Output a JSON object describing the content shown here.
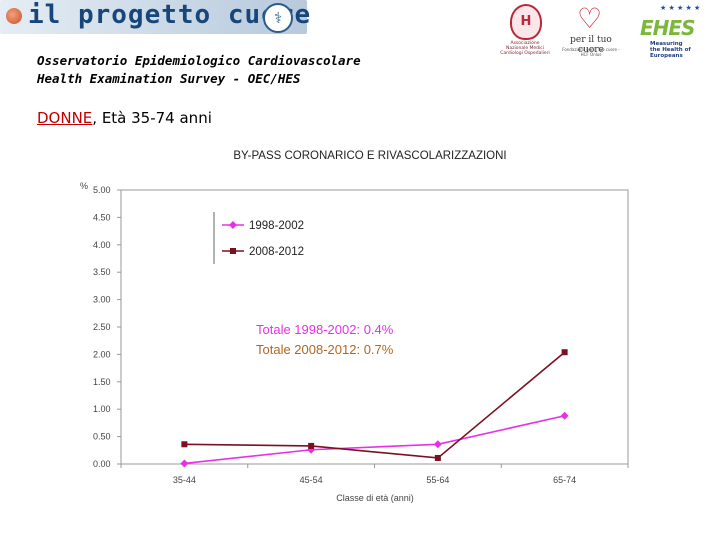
{
  "header": {
    "brand_text": "il progetto cuore",
    "line1": "Osservatorio Epidemiologico Cardiovascolare",
    "line2": "Health Examination Survey - OEC/HES",
    "subtitle_highlight": "DONNE",
    "subtitle_rest": ", Età 35-74 anni"
  },
  "logos": {
    "anmco_mark": "H",
    "anmco_caption": "Associazione Nazionale Medici Cardiologi Ospedalieri",
    "percuore_main": "per il tuo cuore",
    "percuore_caption": "Fondazione per il Tuo cuore - HCF Onlus",
    "ehes_word": "EHES",
    "ehes_tagline": [
      "Measuring",
      "the Health of",
      "Europeans"
    ]
  },
  "chart_data": {
    "type": "line",
    "title": "BY-PASS CORONARICO E RIVASCOLARIZZAZIONI",
    "ylabel": "%",
    "xlabel": "Classe di età (anni)",
    "categories": [
      "35-44",
      "45-54",
      "55-64",
      "65-74"
    ],
    "ylim": [
      0,
      5
    ],
    "ytick_step": 0.5,
    "y_ticks": [
      "0.00",
      "0.50",
      "1.00",
      "1.50",
      "2.00",
      "2.50",
      "3.00",
      "3.50",
      "4.00",
      "4.50",
      "5.00"
    ],
    "grid": false,
    "series": [
      {
        "name": "1998-2002",
        "color": "#e830e8",
        "marker": "diamond",
        "values": [
          0.01,
          0.26,
          0.36,
          0.88
        ]
      },
      {
        "name": "2008-2012",
        "color": "#7a1020",
        "marker": "square",
        "values": [
          0.36,
          0.33,
          0.11,
          2.04
        ]
      }
    ],
    "annotations": [
      {
        "text": "Totale 1998-2002: 0.4%",
        "color": "#e830e8"
      },
      {
        "text": "Totale 2008-2012: 0.7%",
        "color": "#b5651d"
      }
    ],
    "legend_position": "top-left"
  }
}
